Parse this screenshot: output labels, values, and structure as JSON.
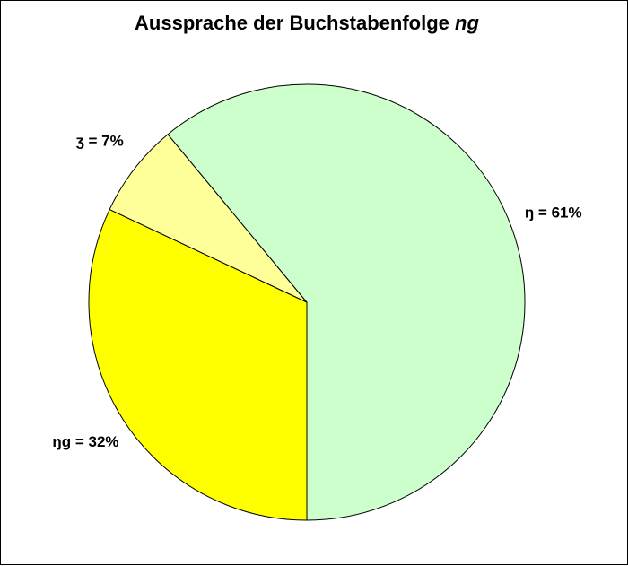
{
  "chart_data": {
    "type": "pie",
    "title": "Aussprache der Buchstabenfolge",
    "title_italic": "ng",
    "categories": [
      "ŋg",
      "ʒ",
      "ŋ"
    ],
    "values": [
      32,
      7,
      61
    ],
    "value_labels": [
      "ŋg = 32%",
      "ʒ = 7%",
      "ŋ = 61%"
    ],
    "colors": [
      "#ffff00",
      "#ffff99",
      "#ccffcc"
    ]
  }
}
